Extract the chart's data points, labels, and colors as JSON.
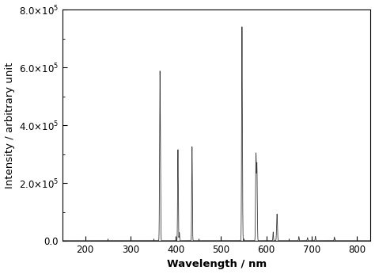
{
  "xlabel": "Wavelength / nm",
  "ylabel": "Intensity / arbitrary unit",
  "xlim": [
    150,
    830
  ],
  "ylim": [
    0,
    800000.0
  ],
  "xticks": [
    200,
    300,
    400,
    500,
    600,
    700,
    800
  ],
  "yticks": [
    0.0,
    200000.0,
    400000.0,
    600000.0,
    800000.0
  ],
  "background_color": "#ffffff",
  "line_color": "#3a3a3a",
  "spectral_lines": [
    {
      "wavelength": 365.0,
      "intensity": 578000,
      "sigma": 0.8
    },
    {
      "wavelength": 366.3,
      "intensity": 90000,
      "sigma": 0.6
    },
    {
      "wavelength": 404.7,
      "intensity": 315000,
      "sigma": 0.7
    },
    {
      "wavelength": 407.8,
      "intensity": 28000,
      "sigma": 0.6
    },
    {
      "wavelength": 435.8,
      "intensity": 325000,
      "sigma": 0.7
    },
    {
      "wavelength": 546.1,
      "intensity": 740000,
      "sigma": 0.8
    },
    {
      "wavelength": 547.5,
      "intensity": 30000,
      "sigma": 0.5
    },
    {
      "wavelength": 576.9,
      "intensity": 295000,
      "sigma": 0.8
    },
    {
      "wavelength": 579.0,
      "intensity": 260000,
      "sigma": 0.8
    },
    {
      "wavelength": 614.9,
      "intensity": 30000,
      "sigma": 0.6
    },
    {
      "wavelength": 623.4,
      "intensity": 92000,
      "sigma": 0.9
    },
    {
      "wavelength": 671.6,
      "intensity": 14000,
      "sigma": 0.6
    },
    {
      "wavelength": 690.7,
      "intensity": 10000,
      "sigma": 0.6
    },
    {
      "wavelength": 708.2,
      "intensity": 15000,
      "sigma": 0.6
    },
    {
      "wavelength": 750.0,
      "intensity": 12000,
      "sigma": 0.6
    }
  ],
  "background_continuum": 500,
  "figsize": [
    4.74,
    3.46
  ],
  "dpi": 100
}
